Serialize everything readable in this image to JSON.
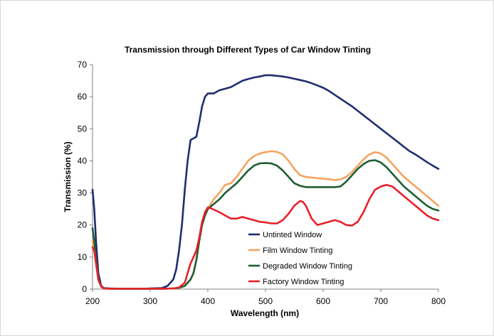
{
  "chart_data": {
    "type": "line",
    "title": "Transmission through Different Types of Car Window Tinting",
    "xlabel": "Wavelength (nm)",
    "ylabel": "Transmission (%)",
    "xlim": [
      200,
      800
    ],
    "ylim": [
      0,
      70
    ],
    "xticks": [
      200,
      300,
      400,
      500,
      600,
      700,
      800
    ],
    "yticks": [
      0,
      10,
      20,
      30,
      40,
      50,
      60,
      70
    ],
    "grid": false,
    "legend_position": "lower-center",
    "series": [
      {
        "name": "Untinted Window",
        "color": "#1f2d6e",
        "x": [
          200,
          203,
          206,
          210,
          215,
          220,
          230,
          250,
          270,
          290,
          300,
          320,
          330,
          340,
          345,
          350,
          355,
          360,
          365,
          370,
          375,
          380,
          385,
          390,
          395,
          400,
          410,
          420,
          430,
          440,
          450,
          460,
          470,
          480,
          490,
          500,
          510,
          520,
          530,
          540,
          550,
          560,
          570,
          580,
          590,
          600,
          610,
          620,
          630,
          640,
          650,
          660,
          670,
          680,
          690,
          700,
          710,
          720,
          730,
          740,
          750,
          760,
          770,
          780,
          790,
          800
        ],
        "y": [
          31,
          25,
          15,
          5,
          1,
          0.3,
          0.2,
          0.1,
          0.1,
          0.1,
          0.2,
          0.3,
          1,
          3,
          6,
          12,
          20,
          31,
          40,
          46.5,
          47,
          47.5,
          52,
          57,
          60,
          61,
          61,
          62,
          62.5,
          63,
          64,
          65,
          65.5,
          66,
          66.3,
          66.7,
          66.7,
          66.5,
          66.3,
          66,
          65.6,
          65.2,
          64.8,
          64.2,
          63.5,
          62.8,
          61.8,
          60.6,
          59.4,
          58.2,
          57,
          55.6,
          54.2,
          52.8,
          51.4,
          50,
          48.6,
          47.2,
          45.8,
          44.4,
          43,
          42,
          40.8,
          39.6,
          38.5,
          37.5
        ]
      },
      {
        "name": "Film Window Tinting",
        "color": "#f4a460",
        "x": [
          200,
          203,
          206,
          210,
          215,
          220,
          230,
          250,
          270,
          290,
          300,
          320,
          340,
          350,
          360,
          370,
          375,
          380,
          385,
          390,
          395,
          400,
          410,
          420,
          430,
          440,
          450,
          460,
          470,
          480,
          490,
          500,
          510,
          520,
          530,
          540,
          550,
          560,
          570,
          580,
          590,
          600,
          610,
          620,
          630,
          640,
          650,
          660,
          670,
          680,
          690,
          700,
          710,
          720,
          730,
          740,
          750,
          760,
          770,
          780,
          790,
          800
        ],
        "y": [
          15,
          12,
          8,
          3,
          0.8,
          0.2,
          0.1,
          0.1,
          0.1,
          0.1,
          0.1,
          0.1,
          0.2,
          0.4,
          1,
          3,
          5,
          9,
          15,
          20,
          23,
          25,
          28,
          30,
          32.5,
          33,
          35,
          37.5,
          40,
          41.5,
          42.3,
          42.7,
          43,
          42.8,
          42,
          40,
          37.5,
          35.5,
          35,
          34.8,
          34.6,
          34.4,
          34.3,
          34,
          34.2,
          35,
          36.5,
          38.5,
          40.5,
          42,
          42.7,
          42.3,
          41,
          39,
          37,
          35,
          33.5,
          32,
          30.5,
          29,
          27.5,
          26
        ]
      },
      {
        "name": "Degraded Window Tinting",
        "color": "#1e5e32",
        "x": [
          200,
          203,
          206,
          210,
          215,
          220,
          230,
          250,
          270,
          290,
          300,
          320,
          340,
          350,
          360,
          370,
          375,
          380,
          385,
          390,
          395,
          400,
          410,
          420,
          430,
          440,
          450,
          460,
          470,
          480,
          490,
          500,
          510,
          520,
          530,
          540,
          550,
          560,
          570,
          580,
          590,
          600,
          610,
          620,
          630,
          640,
          650,
          660,
          670,
          680,
          690,
          700,
          710,
          720,
          730,
          740,
          750,
          760,
          770,
          780,
          790,
          800
        ],
        "y": [
          19,
          15,
          9,
          3,
          0.8,
          0.2,
          0.1,
          0.1,
          0.1,
          0.1,
          0.1,
          0.1,
          0.2,
          0.4,
          1,
          3,
          5,
          9,
          15,
          20,
          23,
          25,
          26.5,
          28,
          30,
          31.5,
          33,
          35,
          37,
          38.5,
          39.2,
          39.3,
          39.2,
          38.5,
          37,
          35,
          33,
          32.2,
          31.8,
          31.8,
          31.8,
          31.8,
          31.8,
          31.8,
          32,
          33.5,
          35.5,
          37.5,
          39,
          40,
          40.2,
          39.5,
          38,
          36,
          34,
          32,
          30.5,
          29,
          27.5,
          26,
          25,
          24.5
        ]
      },
      {
        "name": "Factory Window Tinting",
        "color": "#e8202a",
        "x": [
          200,
          203,
          206,
          210,
          215,
          220,
          230,
          250,
          270,
          290,
          300,
          320,
          340,
          350,
          360,
          365,
          370,
          375,
          380,
          385,
          390,
          395,
          400,
          405,
          410,
          420,
          430,
          440,
          450,
          460,
          470,
          480,
          490,
          500,
          510,
          520,
          530,
          540,
          550,
          560,
          565,
          570,
          580,
          590,
          600,
          610,
          620,
          630,
          640,
          650,
          660,
          670,
          680,
          690,
          700,
          710,
          720,
          730,
          740,
          750,
          760,
          770,
          780,
          790,
          800
        ],
        "y": [
          13,
          12,
          8,
          3,
          0.8,
          0.2,
          0.1,
          0.1,
          0.1,
          0.1,
          0.1,
          0.1,
          0.2,
          0.5,
          2,
          5,
          8,
          10,
          12,
          16,
          21,
          24,
          25.5,
          25.2,
          24.8,
          24,
          23,
          22,
          22,
          22.5,
          22,
          21.5,
          21,
          20.8,
          20.5,
          20.5,
          21.5,
          23.5,
          26,
          27.5,
          27.2,
          26,
          22,
          20,
          20.5,
          21,
          21.5,
          21,
          20,
          19.8,
          21,
          24,
          28,
          31,
          32,
          32.5,
          32,
          30.5,
          29,
          27.5,
          26,
          24.5,
          23,
          22,
          21.5
        ]
      }
    ]
  }
}
